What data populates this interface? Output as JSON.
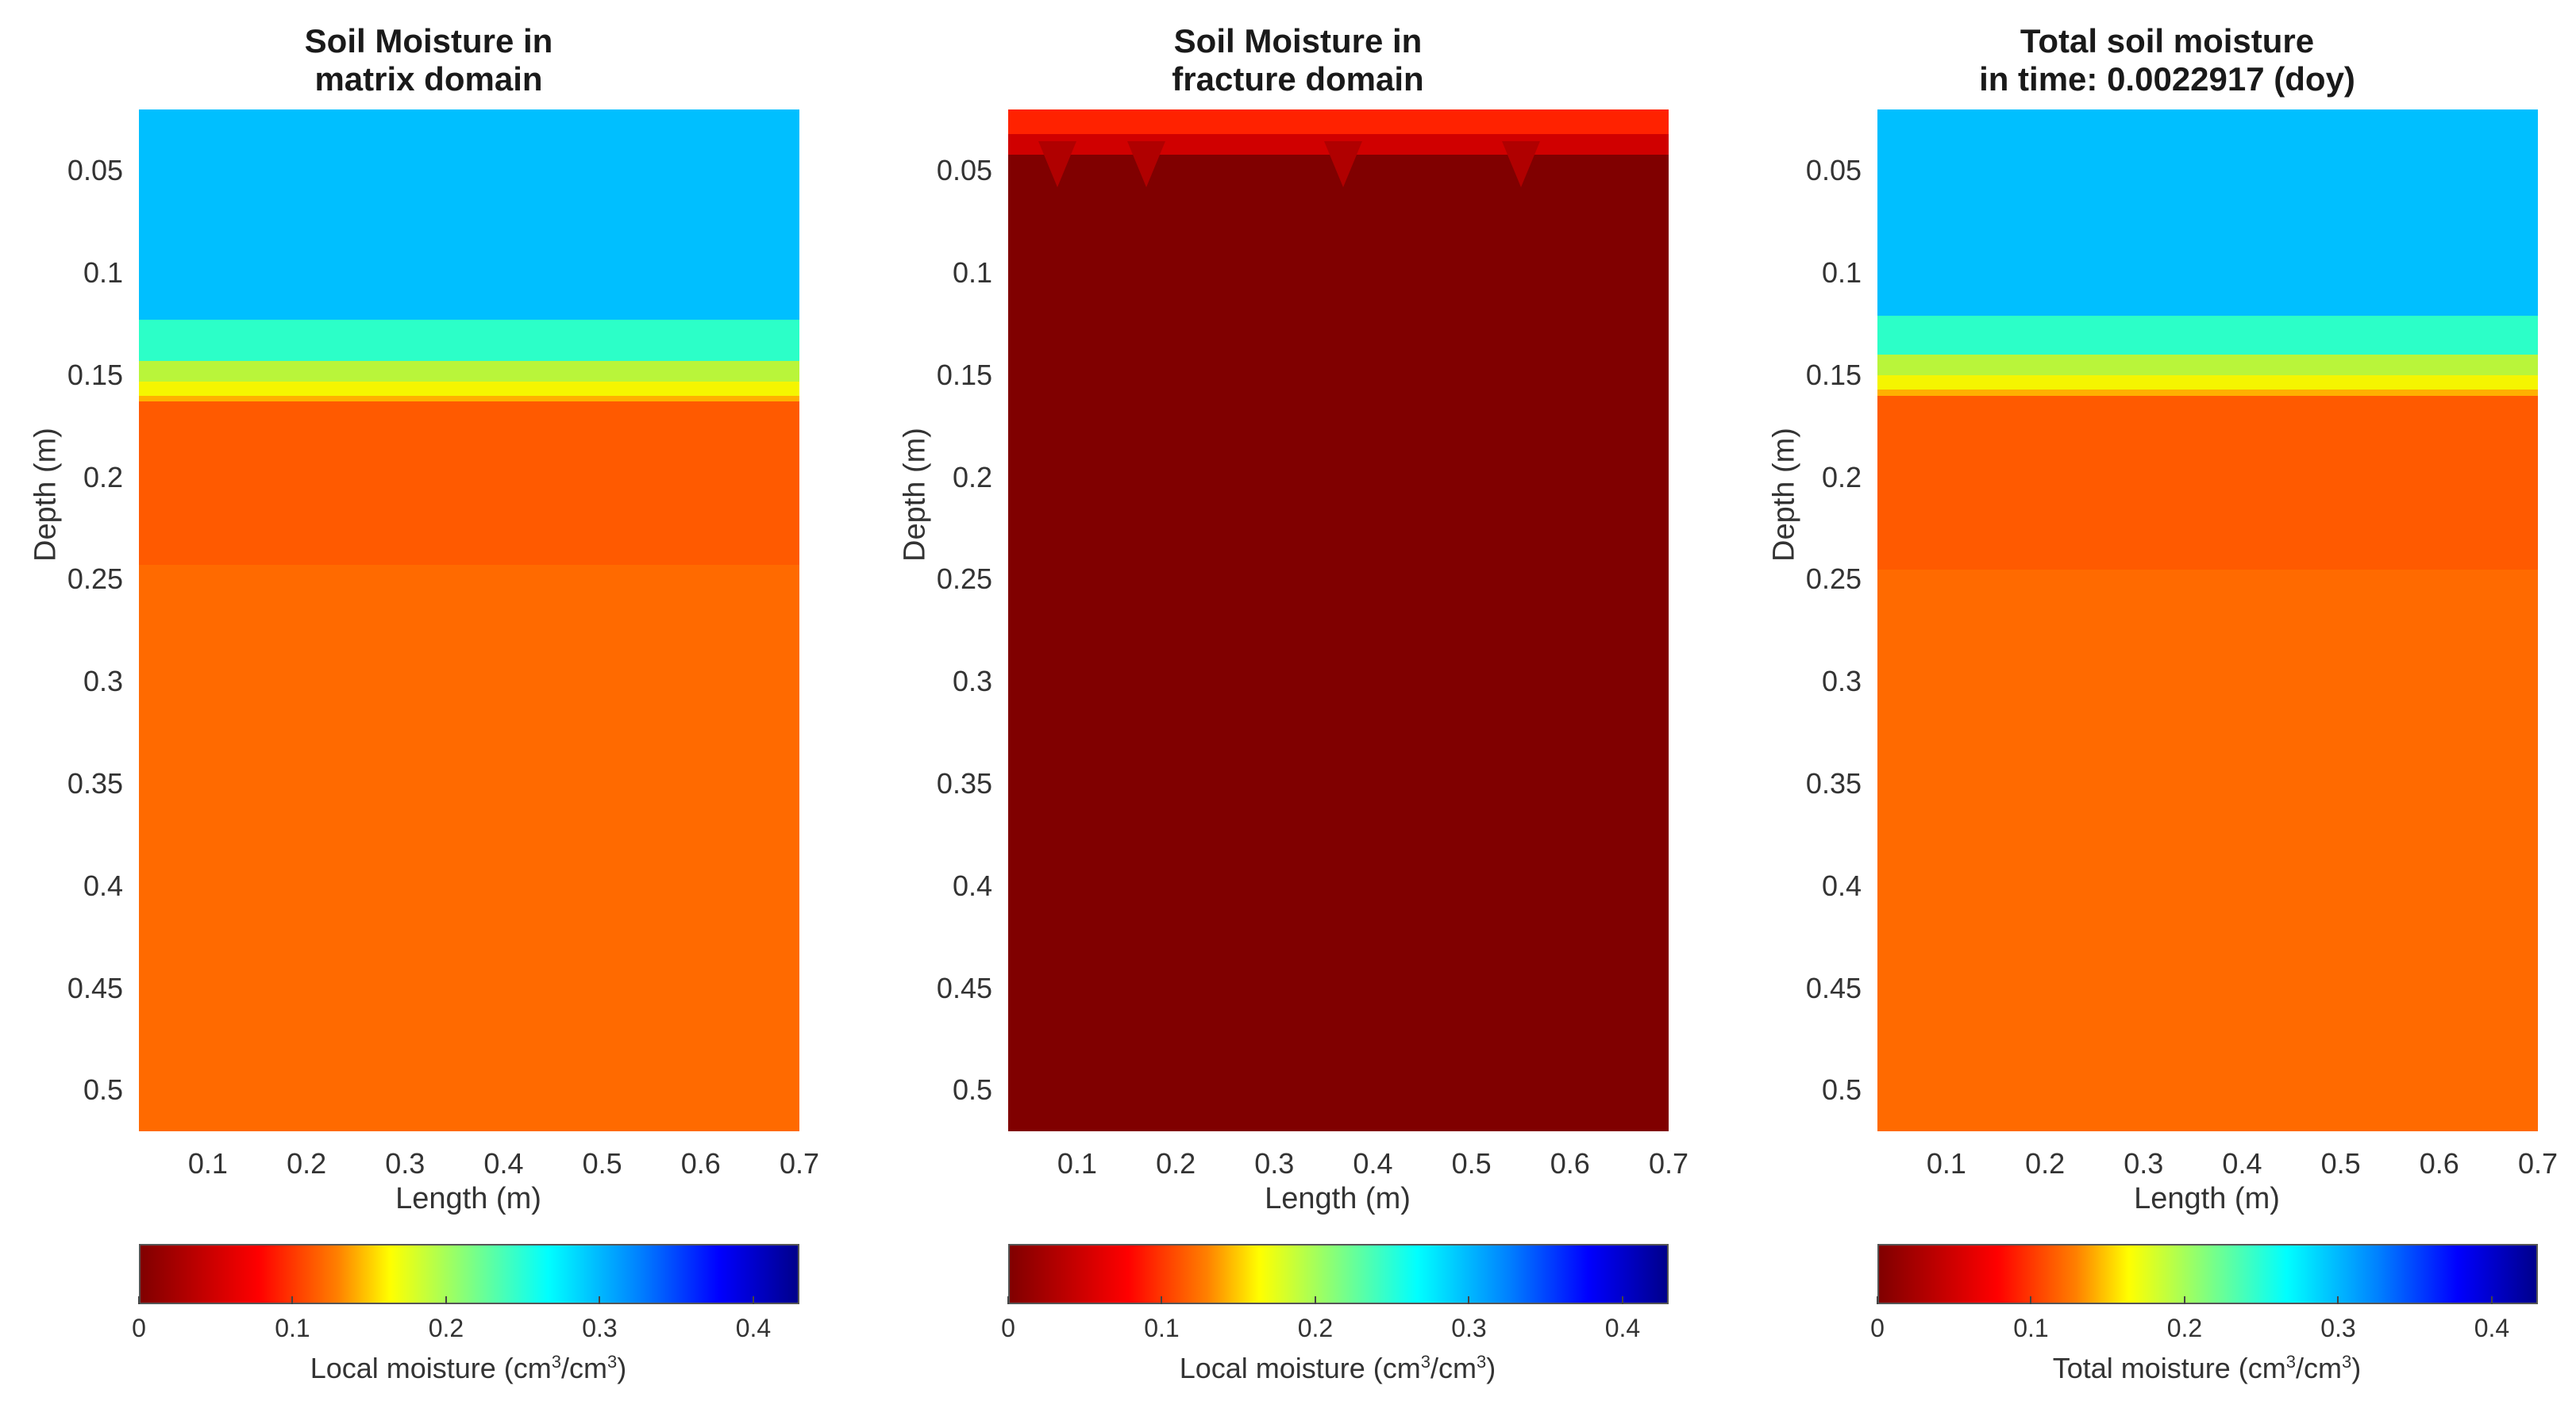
{
  "colors": {
    "deep_red": "#800000",
    "red": "#e41a1c",
    "orange_dark": "#ff5a00",
    "orange": "#ff6a00",
    "orange_light": "#ff7f00",
    "yellow": "#f5f500",
    "yellow_green": "#b9f53a",
    "cyan_green": "#2cffc8",
    "sky_blue": "#00bfff",
    "blue": "#0000ff",
    "navy": "#00008b"
  },
  "chart_data": [
    {
      "type": "heatmap",
      "title": [
        "Soil Moisture in",
        "matrix domain"
      ],
      "xlabel": "Length (m)",
      "ylabel": "Depth (m)",
      "xlim": [
        0.03,
        0.7
      ],
      "ylim": [
        0.02,
        0.52
      ],
      "xticks": [
        "0.1",
        "0.2",
        "0.3",
        "0.4",
        "0.5",
        "0.6",
        "0.7"
      ],
      "yticks": [
        "0.05",
        "0.1",
        "0.15",
        "0.2",
        "0.25",
        "0.3",
        "0.35",
        "0.4",
        "0.45",
        "0.5"
      ],
      "bands": [
        {
          "from": 0.02,
          "to": 0.123,
          "value": 0.295,
          "color": "#00bfff"
        },
        {
          "from": 0.123,
          "to": 0.143,
          "value": 0.25,
          "color": "#2cffc8"
        },
        {
          "from": 0.143,
          "to": 0.153,
          "value": 0.21,
          "color": "#b9f53a"
        },
        {
          "from": 0.153,
          "to": 0.16,
          "value": 0.16,
          "color": "#f5f500"
        },
        {
          "from": 0.16,
          "to": 0.163,
          "value": 0.13,
          "color": "#ffb000"
        },
        {
          "from": 0.163,
          "to": 0.243,
          "value": 0.085,
          "color": "#ff5a00"
        },
        {
          "from": 0.243,
          "to": 0.52,
          "value": 0.095,
          "color": "#ff6a00"
        }
      ],
      "colorbar": {
        "label": "Local moisture (cm",
        "label_sup1": "3",
        "label_mid": "/cm",
        "label_sup2": "3",
        "label_end": ")",
        "range": [
          0,
          0.43
        ],
        "ticks": [
          "0",
          "0.1",
          "0.2",
          "0.3",
          "0.4"
        ]
      }
    },
    {
      "type": "heatmap",
      "title": [
        "Soil Moisture in",
        "fracture domain"
      ],
      "xlabel": "Length (m)",
      "ylabel": "Depth (m)",
      "xlim": [
        0.03,
        0.7
      ],
      "ylim": [
        0.02,
        0.52
      ],
      "xticks": [
        "0.1",
        "0.2",
        "0.3",
        "0.4",
        "0.5",
        "0.6",
        "0.7"
      ],
      "yticks": [
        "0.05",
        "0.1",
        "0.15",
        "0.2",
        "0.25",
        "0.3",
        "0.35",
        "0.4",
        "0.45",
        "0.5"
      ],
      "bands": [
        {
          "from": 0.02,
          "to": 0.032,
          "value": 0.06,
          "color": "#ff2200"
        },
        {
          "from": 0.032,
          "to": 0.042,
          "value": 0.04,
          "color": "#d00000"
        },
        {
          "from": 0.042,
          "to": 0.52,
          "value": 0.005,
          "color": "#800000"
        }
      ],
      "colorbar": {
        "label": "Local moisture (cm",
        "label_sup1": "3",
        "label_mid": "/cm",
        "label_sup2": "3",
        "label_end": ")",
        "range": [
          0,
          0.43
        ],
        "ticks": [
          "0",
          "0.1",
          "0.2",
          "0.3",
          "0.4"
        ]
      }
    },
    {
      "type": "heatmap",
      "title": [
        "Total soil moisture",
        "in time: 0.0022917 (doy)"
      ],
      "xlabel": "Length (m)",
      "ylabel": "Depth (m)",
      "xlim": [
        0.03,
        0.7
      ],
      "ylim": [
        0.02,
        0.52
      ],
      "xticks": [
        "0.1",
        "0.2",
        "0.3",
        "0.4",
        "0.5",
        "0.6",
        "0.7"
      ],
      "yticks": [
        "0.05",
        "0.1",
        "0.15",
        "0.2",
        "0.25",
        "0.3",
        "0.35",
        "0.4",
        "0.45",
        "0.5"
      ],
      "bands": [
        {
          "from": 0.02,
          "to": 0.121,
          "value": 0.295,
          "color": "#00bfff"
        },
        {
          "from": 0.121,
          "to": 0.14,
          "value": 0.25,
          "color": "#2cffc8"
        },
        {
          "from": 0.14,
          "to": 0.15,
          "value": 0.21,
          "color": "#b9f53a"
        },
        {
          "from": 0.15,
          "to": 0.157,
          "value": 0.16,
          "color": "#f5f500"
        },
        {
          "from": 0.157,
          "to": 0.16,
          "value": 0.13,
          "color": "#ffb000"
        },
        {
          "from": 0.16,
          "to": 0.245,
          "value": 0.085,
          "color": "#ff5a00"
        },
        {
          "from": 0.245,
          "to": 0.52,
          "value": 0.095,
          "color": "#ff6a00"
        }
      ],
      "colorbar": {
        "label": "Total moisture (cm",
        "label_sup1": "3",
        "label_mid": "/cm",
        "label_sup2": "3",
        "label_end": ")",
        "range": [
          0,
          0.43
        ],
        "ticks": [
          "0",
          "0.1",
          "0.2",
          "0.3",
          "0.4"
        ]
      }
    }
  ]
}
